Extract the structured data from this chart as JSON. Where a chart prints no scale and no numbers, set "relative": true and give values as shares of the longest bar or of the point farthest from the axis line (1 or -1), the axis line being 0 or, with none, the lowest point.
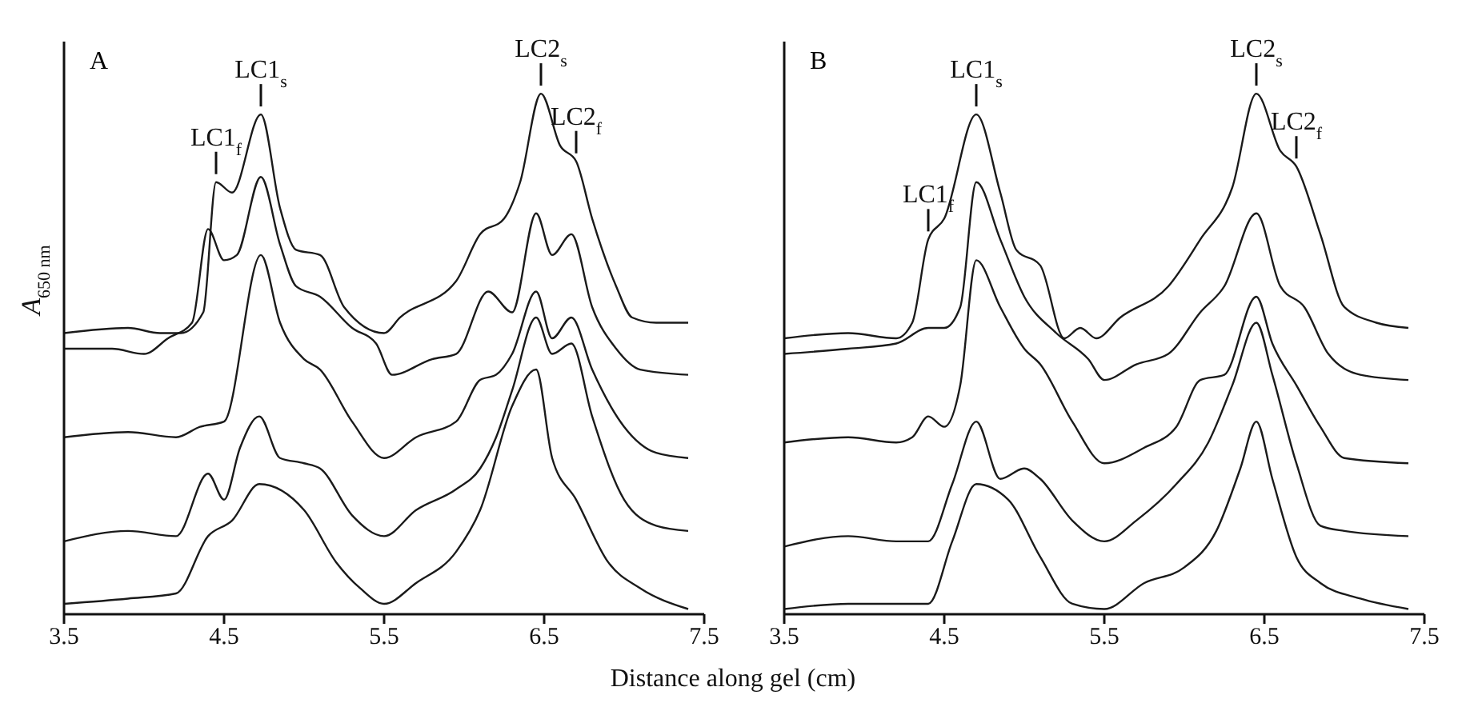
{
  "chart_data": [
    {
      "type": "line",
      "title": "A",
      "ylabel": "A$_{650 nm}$",
      "xlabel": "Distance along gel (cm)",
      "relative": true,
      "xlim": [
        3.5,
        7.5
      ],
      "xticks": [
        3.5,
        4.5,
        5.5,
        6.5,
        7.5
      ],
      "tick_labels": "x",
      "line_style": "solid",
      "annotations": [
        {
          "text": "LC1$_{f}$",
          "x": 4.45,
          "y": 0.83
        },
        {
          "text": "LC1$_{s}$",
          "x": 4.73,
          "y": 0.96
        },
        {
          "text": "LC2$_{s}$",
          "x": 6.48,
          "y": 1.0
        },
        {
          "text": "LC2$_{f}$",
          "x": 6.7,
          "y": 0.87
        }
      ],
      "series": [
        {
          "color": "#1a1a1a",
          "x": [
            3.5,
            3.9,
            4.1,
            4.23,
            4.37,
            4.45,
            4.55,
            4.73,
            4.85,
            4.95,
            5.1,
            5.25,
            5.5,
            5.6,
            5.95,
            6.1,
            6.25,
            6.35,
            6.48,
            6.6,
            6.7,
            6.8,
            6.95,
            7.05,
            7.2,
            7.4
          ],
          "values": [
            0.54,
            0.55,
            0.54,
            0.54,
            0.58,
            0.83,
            0.81,
            0.96,
            0.78,
            0.7,
            0.69,
            0.59,
            0.54,
            0.57,
            0.64,
            0.73,
            0.76,
            0.83,
            1.0,
            0.9,
            0.87,
            0.76,
            0.63,
            0.57,
            0.56,
            0.56
          ]
        },
        {
          "color": "#1a1a1a",
          "x": [
            3.5,
            3.8,
            4.0,
            4.15,
            4.3,
            4.4,
            4.5,
            4.58,
            4.73,
            4.85,
            4.95,
            5.1,
            5.3,
            5.45,
            5.55,
            5.8,
            5.95,
            6.15,
            6.3,
            6.45,
            6.55,
            6.67,
            6.8,
            6.95,
            7.1,
            7.4
          ],
          "values": [
            0.51,
            0.51,
            0.5,
            0.53,
            0.56,
            0.74,
            0.68,
            0.69,
            0.84,
            0.71,
            0.63,
            0.61,
            0.55,
            0.52,
            0.46,
            0.49,
            0.5,
            0.62,
            0.58,
            0.77,
            0.69,
            0.73,
            0.59,
            0.51,
            0.47,
            0.46
          ]
        },
        {
          "color": "#1a1a1a",
          "x": [
            3.5,
            3.9,
            4.2,
            4.35,
            4.5,
            4.73,
            4.85,
            5.0,
            5.1,
            5.3,
            5.5,
            5.7,
            5.95,
            6.1,
            6.2,
            6.3,
            6.45,
            6.55,
            6.67,
            6.8,
            7.0,
            7.2,
            7.4
          ],
          "values": [
            0.34,
            0.35,
            0.34,
            0.36,
            0.37,
            0.69,
            0.56,
            0.49,
            0.47,
            0.37,
            0.3,
            0.34,
            0.37,
            0.45,
            0.46,
            0.5,
            0.62,
            0.53,
            0.57,
            0.47,
            0.36,
            0.31,
            0.3
          ]
        },
        {
          "color": "#1a1a1a",
          "x": [
            3.5,
            3.9,
            4.2,
            4.4,
            4.5,
            4.6,
            4.72,
            4.85,
            5.0,
            5.1,
            5.3,
            5.5,
            5.7,
            5.95,
            6.1,
            6.2,
            6.3,
            6.45,
            6.55,
            6.67,
            6.8,
            7.0,
            7.2,
            7.4
          ],
          "values": [
            0.14,
            0.16,
            0.15,
            0.27,
            0.22,
            0.32,
            0.38,
            0.3,
            0.29,
            0.28,
            0.19,
            0.15,
            0.2,
            0.24,
            0.28,
            0.34,
            0.43,
            0.57,
            0.5,
            0.52,
            0.38,
            0.22,
            0.17,
            0.16
          ]
        },
        {
          "color": "#1a1a1a",
          "x": [
            3.5,
            3.9,
            4.2,
            4.4,
            4.55,
            4.72,
            5.0,
            5.2,
            5.35,
            5.5,
            5.7,
            5.95,
            6.1,
            6.3,
            6.45,
            6.55,
            6.7,
            6.9,
            7.1,
            7.4
          ],
          "values": [
            0.02,
            0.03,
            0.04,
            0.15,
            0.18,
            0.25,
            0.2,
            0.1,
            0.05,
            0.02,
            0.06,
            0.12,
            0.2,
            0.4,
            0.47,
            0.3,
            0.22,
            0.1,
            0.05,
            0.01
          ]
        }
      ]
    },
    {
      "type": "line",
      "title": "B",
      "relative": true,
      "xlim": [
        3.5,
        7.5
      ],
      "xticks": [
        3.5,
        4.5,
        5.5,
        6.5,
        7.5
      ],
      "tick_labels": "x",
      "line_style": "solid",
      "annotations": [
        {
          "text": "LC1$_{f}$",
          "x": 4.4,
          "y": 0.72
        },
        {
          "text": "LC1$_{s}$",
          "x": 4.7,
          "y": 0.96
        },
        {
          "text": "LC2$_{s}$",
          "x": 6.45,
          "y": 1.0
        },
        {
          "text": "LC2$_{f}$",
          "x": 6.7,
          "y": 0.86
        }
      ],
      "series": [
        {
          "color": "#1a1a1a",
          "x": [
            3.5,
            3.9,
            4.2,
            4.3,
            4.4,
            4.5,
            4.7,
            4.85,
            4.95,
            5.1,
            5.25,
            5.35,
            5.45,
            5.6,
            5.9,
            6.1,
            6.3,
            6.45,
            6.6,
            6.7,
            6.85,
            7.0,
            7.2,
            7.4
          ],
          "values": [
            0.53,
            0.54,
            0.53,
            0.56,
            0.72,
            0.76,
            0.96,
            0.81,
            0.7,
            0.67,
            0.53,
            0.55,
            0.53,
            0.57,
            0.63,
            0.72,
            0.82,
            1.0,
            0.89,
            0.86,
            0.73,
            0.59,
            0.56,
            0.55
          ]
        },
        {
          "color": "#1a1a1a",
          "x": [
            3.5,
            3.9,
            4.2,
            4.4,
            4.5,
            4.6,
            4.7,
            4.85,
            5.0,
            5.2,
            5.4,
            5.5,
            5.7,
            5.9,
            6.1,
            6.25,
            6.45,
            6.6,
            6.75,
            6.9,
            7.1,
            7.4
          ],
          "values": [
            0.5,
            0.51,
            0.52,
            0.55,
            0.55,
            0.59,
            0.83,
            0.72,
            0.61,
            0.54,
            0.49,
            0.45,
            0.48,
            0.5,
            0.58,
            0.63,
            0.77,
            0.63,
            0.59,
            0.5,
            0.46,
            0.45
          ]
        },
        {
          "color": "#1a1a1a",
          "x": [
            3.5,
            3.9,
            4.2,
            4.3,
            4.4,
            4.5,
            4.6,
            4.7,
            4.85,
            5.0,
            5.1,
            5.3,
            5.5,
            5.75,
            5.95,
            6.1,
            6.25,
            6.45,
            6.55,
            6.7,
            6.85,
            7.0,
            7.4
          ],
          "values": [
            0.33,
            0.34,
            0.33,
            0.34,
            0.38,
            0.36,
            0.44,
            0.68,
            0.59,
            0.51,
            0.48,
            0.37,
            0.29,
            0.32,
            0.36,
            0.45,
            0.46,
            0.61,
            0.52,
            0.44,
            0.36,
            0.3,
            0.29
          ]
        },
        {
          "color": "#1a1a1a",
          "x": [
            3.5,
            3.9,
            4.2,
            4.4,
            4.55,
            4.7,
            4.85,
            5.0,
            5.1,
            5.3,
            5.5,
            5.7,
            5.95,
            6.15,
            6.3,
            6.45,
            6.55,
            6.7,
            6.85,
            7.0,
            7.4
          ],
          "values": [
            0.13,
            0.15,
            0.14,
            0.14,
            0.25,
            0.37,
            0.26,
            0.28,
            0.26,
            0.18,
            0.14,
            0.18,
            0.25,
            0.33,
            0.44,
            0.56,
            0.46,
            0.29,
            0.17,
            0.16,
            0.15
          ]
        },
        {
          "color": "#1a1a1a",
          "x": [
            3.5,
            3.9,
            4.1,
            4.4,
            4.55,
            4.7,
            4.9,
            5.1,
            5.3,
            5.5,
            5.75,
            6.0,
            6.2,
            6.35,
            6.45,
            6.55,
            6.7,
            6.85,
            7.1,
            7.4
          ],
          "values": [
            0.01,
            0.02,
            0.02,
            0.02,
            0.14,
            0.25,
            0.22,
            0.11,
            0.02,
            0.01,
            0.06,
            0.09,
            0.16,
            0.28,
            0.37,
            0.26,
            0.11,
            0.06,
            0.03,
            0.01
          ]
        }
      ]
    }
  ]
}
